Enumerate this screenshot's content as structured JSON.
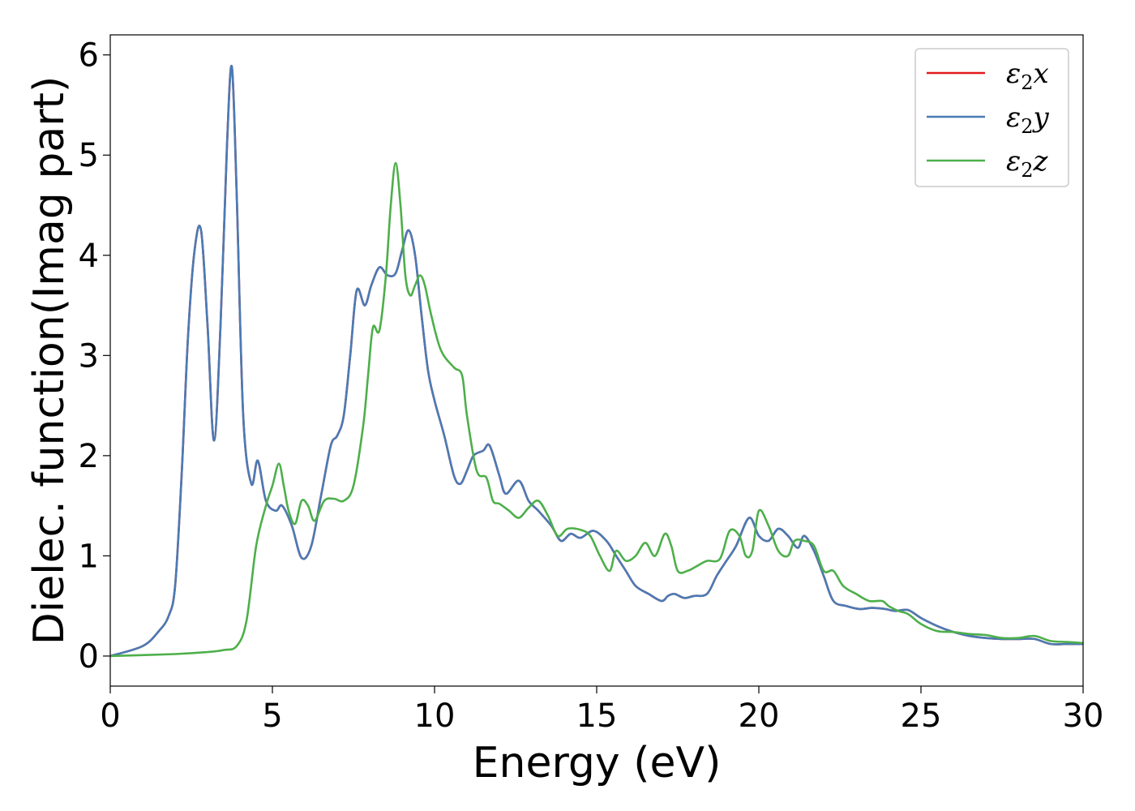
{
  "chart_data": {
    "type": "line",
    "xlabel": "Energy (eV)",
    "ylabel": "Dielec. function(Imag part)",
    "xlim": [
      0,
      30
    ],
    "ylim": [
      -0.3,
      6.2
    ],
    "xticks": [
      0,
      5,
      10,
      15,
      20,
      25,
      30
    ],
    "yticks": [
      0,
      1,
      2,
      3,
      4,
      5,
      6
    ],
    "grid": false,
    "legend_position": "top-right",
    "series": [
      {
        "name": "ε₂x",
        "sym": "ε",
        "sub": "2",
        "axis": "x",
        "color": "#e41a1c",
        "same_as": "ε₂y",
        "x": [
          0,
          1.0,
          1.5,
          1.8,
          2.0,
          2.2,
          2.4,
          2.6,
          2.8,
          3.0,
          3.2,
          3.4,
          3.6,
          3.75,
          3.9,
          4.1,
          4.35,
          4.55,
          4.8,
          5.1,
          5.3,
          5.6,
          5.9,
          6.2,
          6.5,
          6.8,
          7.0,
          7.2,
          7.4,
          7.6,
          7.85,
          8.05,
          8.3,
          8.55,
          8.8,
          9.0,
          9.2,
          9.4,
          9.6,
          9.8,
          10.0,
          10.3,
          10.6,
          10.8,
          11.0,
          11.2,
          11.5,
          11.7,
          12.0,
          12.2,
          12.6,
          12.9,
          13.2,
          13.6,
          13.9,
          14.2,
          14.5,
          14.9,
          15.3,
          15.6,
          15.9,
          16.2,
          16.6,
          17.0,
          17.2,
          17.4,
          17.7,
          18.0,
          18.4,
          18.7,
          19.0,
          19.3,
          19.7,
          20.0,
          20.3,
          20.6,
          20.9,
          21.2,
          21.4,
          21.7,
          22.0,
          22.3,
          22.7,
          23.1,
          23.5,
          23.9,
          24.2,
          24.6,
          25.0,
          25.5,
          26.0,
          26.5,
          27.0,
          27.5,
          28.0,
          28.5,
          29.0,
          29.5,
          30.0
        ],
        "y": [
          0,
          0.1,
          0.25,
          0.4,
          0.7,
          1.8,
          3.2,
          4.05,
          4.25,
          3.3,
          2.15,
          3.3,
          5.1,
          5.88,
          4.6,
          2.4,
          1.72,
          1.95,
          1.55,
          1.45,
          1.5,
          1.3,
          0.98,
          1.1,
          1.6,
          2.1,
          2.2,
          2.4,
          3.0,
          3.65,
          3.5,
          3.7,
          3.88,
          3.8,
          3.82,
          4.05,
          4.25,
          4.0,
          3.4,
          2.85,
          2.55,
          2.2,
          1.8,
          1.72,
          1.85,
          2.0,
          2.05,
          2.1,
          1.8,
          1.62,
          1.75,
          1.55,
          1.45,
          1.3,
          1.15,
          1.22,
          1.18,
          1.25,
          1.15,
          1.0,
          0.85,
          0.7,
          0.62,
          0.55,
          0.6,
          0.62,
          0.58,
          0.6,
          0.62,
          0.8,
          0.95,
          1.1,
          1.38,
          1.2,
          1.15,
          1.27,
          1.2,
          1.08,
          1.2,
          1.05,
          0.8,
          0.55,
          0.5,
          0.47,
          0.48,
          0.47,
          0.45,
          0.46,
          0.38,
          0.3,
          0.24,
          0.2,
          0.18,
          0.17,
          0.17,
          0.17,
          0.12,
          0.12,
          0.12
        ]
      },
      {
        "name": "ε₂y",
        "sym": "ε",
        "sub": "2",
        "axis": "y",
        "color": "#4a7bb5",
        "x": [
          0,
          1.0,
          1.5,
          1.8,
          2.0,
          2.2,
          2.4,
          2.6,
          2.8,
          3.0,
          3.2,
          3.4,
          3.6,
          3.75,
          3.9,
          4.1,
          4.35,
          4.55,
          4.8,
          5.1,
          5.3,
          5.6,
          5.9,
          6.2,
          6.5,
          6.8,
          7.0,
          7.2,
          7.4,
          7.6,
          7.85,
          8.05,
          8.3,
          8.55,
          8.8,
          9.0,
          9.2,
          9.4,
          9.6,
          9.8,
          10.0,
          10.3,
          10.6,
          10.8,
          11.0,
          11.2,
          11.5,
          11.7,
          12.0,
          12.2,
          12.6,
          12.9,
          13.2,
          13.6,
          13.9,
          14.2,
          14.5,
          14.9,
          15.3,
          15.6,
          15.9,
          16.2,
          16.6,
          17.0,
          17.2,
          17.4,
          17.7,
          18.0,
          18.4,
          18.7,
          19.0,
          19.3,
          19.7,
          20.0,
          20.3,
          20.6,
          20.9,
          21.2,
          21.4,
          21.7,
          22.0,
          22.3,
          22.7,
          23.1,
          23.5,
          23.9,
          24.2,
          24.6,
          25.0,
          25.5,
          26.0,
          26.5,
          27.0,
          27.5,
          28.0,
          28.5,
          29.0,
          29.5,
          30.0
        ],
        "y": [
          0,
          0.1,
          0.25,
          0.4,
          0.7,
          1.8,
          3.2,
          4.05,
          4.25,
          3.3,
          2.15,
          3.3,
          5.1,
          5.88,
          4.6,
          2.4,
          1.72,
          1.95,
          1.55,
          1.45,
          1.5,
          1.3,
          0.98,
          1.1,
          1.6,
          2.1,
          2.2,
          2.4,
          3.0,
          3.65,
          3.5,
          3.7,
          3.88,
          3.8,
          3.82,
          4.05,
          4.25,
          4.0,
          3.4,
          2.85,
          2.55,
          2.2,
          1.8,
          1.72,
          1.85,
          2.0,
          2.05,
          2.1,
          1.8,
          1.62,
          1.75,
          1.55,
          1.45,
          1.3,
          1.15,
          1.22,
          1.18,
          1.25,
          1.15,
          1.0,
          0.85,
          0.7,
          0.62,
          0.55,
          0.6,
          0.62,
          0.58,
          0.6,
          0.62,
          0.8,
          0.95,
          1.1,
          1.38,
          1.2,
          1.15,
          1.27,
          1.2,
          1.08,
          1.2,
          1.05,
          0.8,
          0.55,
          0.5,
          0.47,
          0.48,
          0.47,
          0.45,
          0.46,
          0.38,
          0.3,
          0.24,
          0.2,
          0.18,
          0.17,
          0.17,
          0.17,
          0.12,
          0.12,
          0.12
        ]
      },
      {
        "name": "ε₂z",
        "sym": "ε",
        "sub": "2",
        "axis": "z",
        "color": "#4daf4a",
        "x": [
          0,
          2.0,
          3.0,
          3.5,
          3.9,
          4.2,
          4.5,
          4.8,
          5.0,
          5.2,
          5.35,
          5.5,
          5.7,
          5.9,
          6.1,
          6.3,
          6.6,
          6.9,
          7.2,
          7.5,
          7.8,
          7.95,
          8.1,
          8.3,
          8.5,
          8.65,
          8.8,
          8.95,
          9.1,
          9.25,
          9.4,
          9.55,
          9.7,
          9.9,
          10.2,
          10.6,
          10.85,
          11.0,
          11.3,
          11.6,
          11.8,
          12.0,
          12.3,
          12.6,
          12.9,
          13.2,
          13.5,
          13.8,
          14.1,
          14.5,
          14.8,
          15.1,
          15.4,
          15.6,
          15.9,
          16.2,
          16.5,
          16.8,
          17.1,
          17.3,
          17.5,
          17.8,
          18.1,
          18.4,
          18.8,
          19.1,
          19.4,
          19.6,
          19.8,
          20.0,
          20.3,
          20.6,
          20.9,
          21.1,
          21.4,
          21.7,
          22.0,
          22.3,
          22.6,
          23.0,
          23.4,
          23.8,
          24.0,
          24.3,
          24.6,
          25.0,
          25.5,
          26.0,
          26.5,
          27.0,
          27.5,
          28.0,
          28.5,
          29.0,
          29.5,
          30.0
        ],
        "y": [
          0,
          0.02,
          0.04,
          0.06,
          0.1,
          0.35,
          1.1,
          1.5,
          1.7,
          1.92,
          1.7,
          1.45,
          1.32,
          1.55,
          1.5,
          1.35,
          1.55,
          1.57,
          1.55,
          1.7,
          2.3,
          2.8,
          3.28,
          3.25,
          3.8,
          4.5,
          4.92,
          4.5,
          3.8,
          3.6,
          3.7,
          3.8,
          3.7,
          3.4,
          3.05,
          2.88,
          2.8,
          2.4,
          1.85,
          1.78,
          1.55,
          1.52,
          1.45,
          1.38,
          1.48,
          1.55,
          1.4,
          1.2,
          1.27,
          1.26,
          1.2,
          1.0,
          0.85,
          1.05,
          0.95,
          1.0,
          1.13,
          1.0,
          1.22,
          1.1,
          0.85,
          0.85,
          0.9,
          0.95,
          0.97,
          1.25,
          1.2,
          1.0,
          1.05,
          1.45,
          1.3,
          1.05,
          1.0,
          1.15,
          1.15,
          1.1,
          0.85,
          0.85,
          0.7,
          0.62,
          0.55,
          0.55,
          0.5,
          0.45,
          0.42,
          0.32,
          0.25,
          0.24,
          0.22,
          0.21,
          0.18,
          0.18,
          0.2,
          0.15,
          0.14,
          0.13
        ]
      }
    ]
  }
}
